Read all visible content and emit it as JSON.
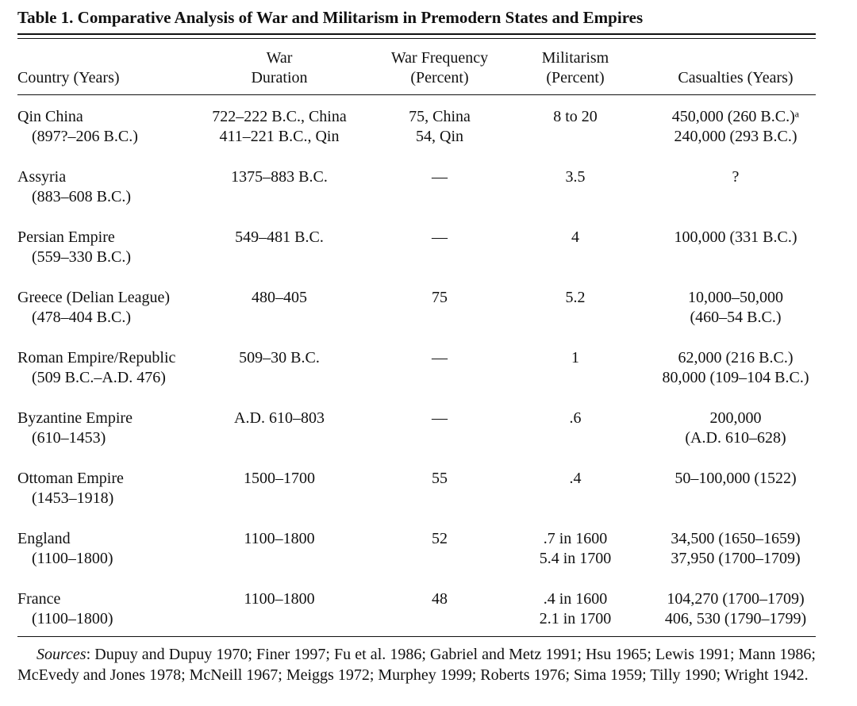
{
  "title": "Table 1.  Comparative Analysis of War and Militarism in Premodern States and Empires",
  "headers": {
    "country": [
      "",
      "Country (Years)"
    ],
    "duration": [
      "War",
      "Duration"
    ],
    "frequency": [
      "War Frequency",
      "(Percent)"
    ],
    "militarism": [
      "Militarism",
      "(Percent)"
    ],
    "casualties": [
      "",
      "Casualties (Years)"
    ]
  },
  "rows": [
    {
      "country": [
        "Qin China",
        "(897?–206 B.C.)"
      ],
      "duration": [
        "722–222 B.C., China",
        "411–221 B.C., Qin"
      ],
      "frequency": [
        "75, China",
        "54, Qin"
      ],
      "militarism": [
        "8 to 20",
        ""
      ],
      "casualties": [
        "450,000 (260 B.C.)ᵃ",
        "240,000 (293 B.C.)"
      ]
    },
    {
      "country": [
        "Assyria",
        "(883–608 B.C.)"
      ],
      "duration": [
        "1375–883 B.C.",
        ""
      ],
      "frequency": [
        "—",
        ""
      ],
      "militarism": [
        "3.5",
        ""
      ],
      "casualties": [
        "?",
        ""
      ]
    },
    {
      "country": [
        "Persian Empire",
        "(559–330 B.C.)"
      ],
      "duration": [
        "549–481 B.C.",
        ""
      ],
      "frequency": [
        "—",
        ""
      ],
      "militarism": [
        "4",
        ""
      ],
      "casualties": [
        "100,000 (331 B.C.)",
        ""
      ]
    },
    {
      "country": [
        "Greece (Delian League)",
        "(478–404 B.C.)"
      ],
      "duration": [
        "480–405",
        ""
      ],
      "frequency": [
        "75",
        ""
      ],
      "militarism": [
        "5.2",
        ""
      ],
      "casualties": [
        "10,000–50,000",
        "(460–54 B.C.)"
      ]
    },
    {
      "country": [
        "Roman Empire/Republic",
        "(509 B.C.–A.D. 476)"
      ],
      "duration": [
        "509–30 B.C.",
        ""
      ],
      "frequency": [
        "—",
        ""
      ],
      "militarism": [
        "1",
        ""
      ],
      "casualties": [
        "62,000 (216 B.C.)",
        "80,000 (109–104 B.C.)"
      ]
    },
    {
      "country": [
        "Byzantine Empire",
        "(610–1453)"
      ],
      "duration": [
        "A.D. 610–803",
        ""
      ],
      "frequency": [
        "—",
        ""
      ],
      "militarism": [
        ".6",
        ""
      ],
      "casualties": [
        "200,000",
        "(A.D. 610–628)"
      ]
    },
    {
      "country": [
        "Ottoman Empire",
        "(1453–1918)"
      ],
      "duration": [
        "1500–1700",
        ""
      ],
      "frequency": [
        "55",
        ""
      ],
      "militarism": [
        ".4",
        ""
      ],
      "casualties": [
        "50–100,000 (1522)",
        ""
      ]
    },
    {
      "country": [
        "England",
        "(1100–1800)"
      ],
      "duration": [
        "1100–1800",
        ""
      ],
      "frequency": [
        "52",
        ""
      ],
      "militarism": [
        ".7 in 1600",
        "5.4 in 1700"
      ],
      "casualties": [
        "34,500 (1650–1659)",
        "37,950 (1700–1709)"
      ]
    },
    {
      "country": [
        "France",
        "(1100–1800)"
      ],
      "duration": [
        "1100–1800",
        ""
      ],
      "frequency": [
        "48",
        ""
      ],
      "militarism": [
        ".4 in 1600",
        "2.1 in 1700"
      ],
      "casualties": [
        "104,270 (1700–1709)",
        "406, 530 (1790–1799)"
      ]
    }
  ],
  "sources_label": "Sources",
  "sources_text": ": Dupuy and Dupuy 1970; Finer 1997; Fu et al. 1986; Gabriel and Metz 1991; Hsu 1965; Lewis 1991; Mann 1986; McEvedy and Jones 1978; McNeill 1967; Meiggs 1972; Murphey 1999; Roberts 1976; Sima 1959; Tilly 1990; Wright 1942."
}
